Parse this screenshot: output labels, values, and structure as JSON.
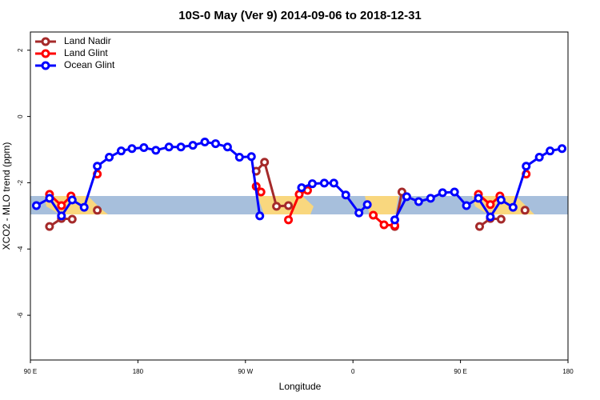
{
  "chart_data": {
    "type": "line",
    "title": "10S-0 May (Ver 9)   2014-09-06 to 2018-12-31",
    "x_label": "Longitude",
    "y_label": "XCO2 - MLO trend (ppm)",
    "xlim": [
      90,
      540
    ],
    "ylim": [
      -7.35,
      2.55
    ],
    "xticks": [
      {
        "value": 90,
        "label": "90 E"
      },
      180,
      {
        "value": 270,
        "label": "90 W"
      },
      {
        "value": 360,
        "label": "0"
      },
      {
        "value": 450,
        "label": "90 E"
      },
      {
        "value": 540,
        "label": "180"
      }
    ],
    "yticks": [
      -6,
      -4,
      -2,
      0,
      2
    ],
    "legend": "top-left",
    "series": [
      {
        "name": "Land Nadir",
        "color": "#a52a2a",
        "x": [
          106,
          116,
          125,
          null,
          146,
          null,
          279,
          286,
          296,
          306,
          null,
          395,
          401,
          null,
          466,
          475,
          484,
          null,
          504
        ],
        "values": [
          -3.32,
          -3.08,
          -3.1,
          null,
          -2.83,
          null,
          -1.65,
          -1.38,
          -2.71,
          -2.69,
          null,
          -3.32,
          -2.28,
          null,
          -3.32,
          -3.08,
          -3.1,
          null,
          -2.83
        ]
      },
      {
        "name": "Land Glint",
        "color": "#ff0000",
        "x": [
          106,
          116,
          124,
          null,
          146,
          null,
          279,
          283,
          null,
          306,
          315,
          322,
          null,
          377,
          386,
          395,
          null,
          465,
          475,
          483,
          null,
          505
        ],
        "values": [
          -2.35,
          -2.69,
          -2.4,
          null,
          -1.74,
          null,
          -2.11,
          -2.28,
          null,
          -3.12,
          -2.35,
          -2.23,
          null,
          -2.98,
          -3.27,
          -3.29,
          null,
          -2.35,
          -2.66,
          -2.4,
          null,
          -1.74
        ]
      },
      {
        "name": "Ocean Glint",
        "color": "#0000ff",
        "x": [
          95,
          106,
          116,
          125,
          135,
          146,
          156,
          166,
          175,
          185,
          195,
          206,
          216,
          226,
          236,
          245,
          255,
          265,
          275,
          282,
          null,
          317,
          326,
          336,
          344,
          354,
          365,
          372,
          null,
          395,
          405,
          415,
          425,
          435,
          445,
          455,
          465,
          475,
          484,
          494,
          505,
          516,
          525,
          535
        ],
        "values": [
          -2.69,
          -2.47,
          -3.0,
          -2.52,
          -2.74,
          -1.5,
          -1.23,
          -1.04,
          -0.97,
          -0.94,
          -1.02,
          -0.92,
          -0.92,
          -0.87,
          -0.77,
          -0.82,
          -0.92,
          -1.23,
          -1.21,
          -3.0,
          null,
          -2.15,
          -2.03,
          -2.01,
          -2.01,
          -2.37,
          -2.91,
          -2.66,
          null,
          -3.12,
          -2.42,
          -2.57,
          -2.47,
          -2.3,
          -2.28,
          -2.69,
          -2.47,
          -3.03,
          -2.52,
          -2.74,
          -1.5,
          -1.23,
          -1.04,
          -0.97
        ]
      }
    ]
  }
}
